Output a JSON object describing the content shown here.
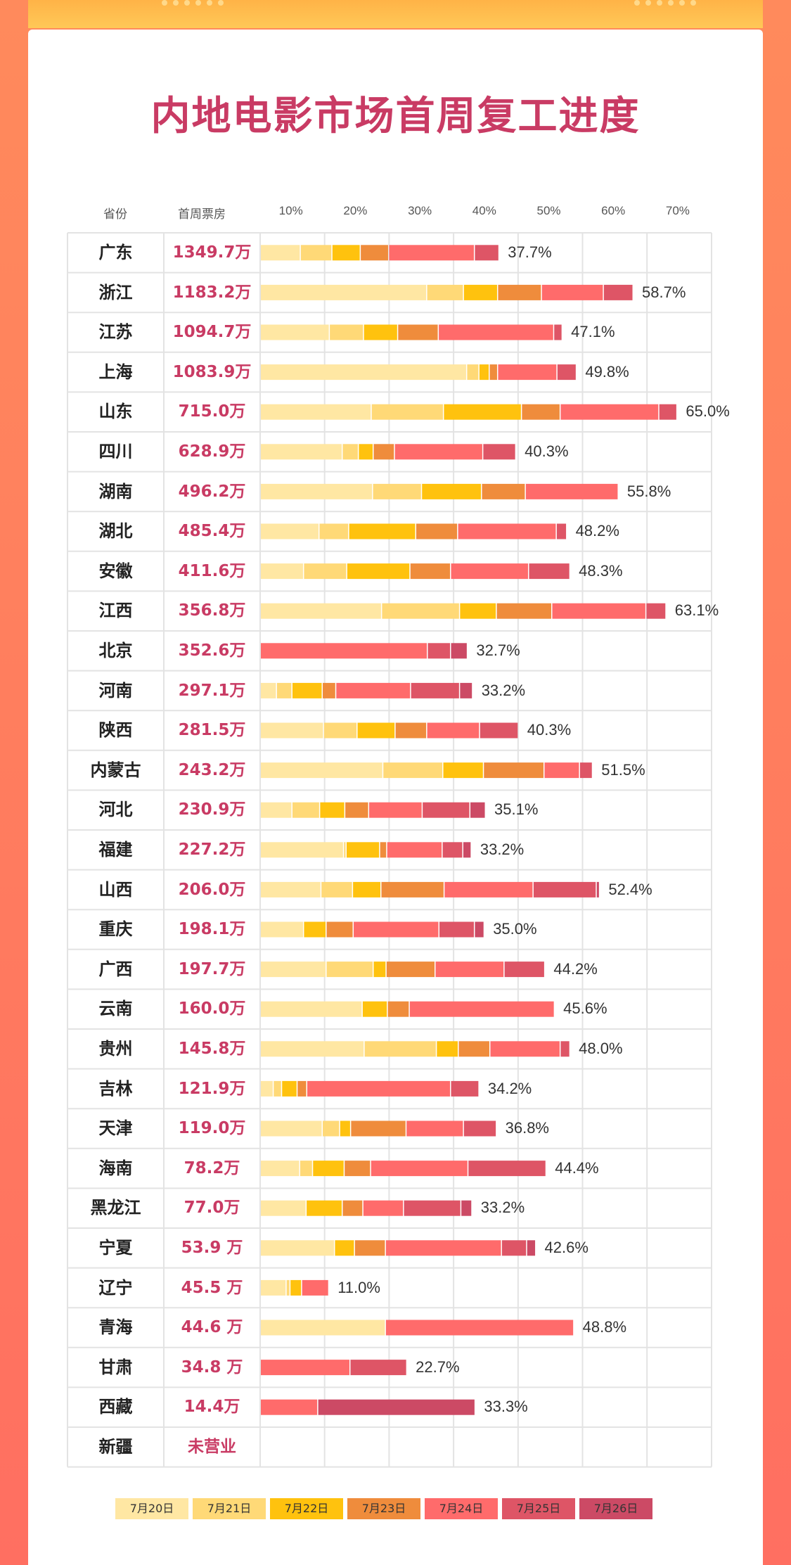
{
  "page": {
    "title": "内地电影市场首周复工进度"
  },
  "headers": {
    "province": "省份",
    "box_office": "首周票房"
  },
  "colors": {
    "d0": "#ffe7a3",
    "d1": "#ffd977",
    "d2": "#ffc20e",
    "d3": "#ef8c3c",
    "d4": "#ff6b6b",
    "d5": "#de5566",
    "d6": "#cc4a65",
    "title": "#c93b64",
    "value": "#c93b64",
    "grid": "#e3e3e3"
  },
  "chart_data": {
    "type": "bar",
    "orientation": "horizontal-stacked",
    "xticks": [
      "10%",
      "20%",
      "30%",
      "40%",
      "50%",
      "60%",
      "70%"
    ],
    "xlim": [
      0,
      70
    ],
    "legend_placement": "bottom",
    "series_names": [
      "7月20日",
      "7月21日",
      "7月22日",
      "7月23日",
      "7月24日",
      "7月25日",
      "7月26日"
    ],
    "rows": [
      {
        "province": "广东",
        "box_office": "1349.7万",
        "segments": [
          6.2,
          4.9,
          4.4,
          4.4,
          13.3,
          3.8,
          0
        ],
        "pct": "37.7%"
      },
      {
        "province": "浙江",
        "box_office": "1183.2万",
        "segments": [
          25.8,
          5.7,
          5.3,
          6.8,
          9.6,
          4.6,
          0
        ],
        "pct": "58.7%"
      },
      {
        "province": "江苏",
        "box_office": "1094.7万",
        "segments": [
          10.7,
          5.3,
          5.3,
          6.3,
          17.9,
          1.3,
          0
        ],
        "pct": "47.1%"
      },
      {
        "province": "上海",
        "box_office": "1083.9万",
        "segments": [
          32.0,
          1.9,
          1.6,
          1.3,
          9.2,
          3.0,
          0
        ],
        "pct": "49.8%"
      },
      {
        "province": "山东",
        "box_office": "715.0万",
        "segments": [
          17.2,
          11.2,
          12.1,
          6.0,
          15.3,
          2.8,
          0
        ],
        "pct": "65.0%"
      },
      {
        "province": "四川",
        "box_office": "628.9万",
        "segments": [
          12.7,
          2.5,
          2.3,
          3.3,
          13.7,
          5.1,
          0
        ],
        "pct": "40.3%"
      },
      {
        "province": "湖南",
        "box_office": "496.2万",
        "segments": [
          17.4,
          7.6,
          9.3,
          6.8,
          14.4,
          0,
          0
        ],
        "pct": "55.8%"
      },
      {
        "province": "湖北",
        "box_office": "485.4万",
        "segments": [
          9.1,
          4.6,
          10.4,
          6.5,
          15.3,
          1.6,
          0
        ],
        "pct": "48.2%"
      },
      {
        "province": "安徽",
        "box_office": "411.6万",
        "segments": [
          6.7,
          6.7,
          9.8,
          6.3,
          12.1,
          6.4,
          0
        ],
        "pct": "48.3%"
      },
      {
        "province": "江西",
        "box_office": "356.8万",
        "segments": [
          18.8,
          12.1,
          5.7,
          8.6,
          14.6,
          3.1,
          0
        ],
        "pct": "63.1%"
      },
      {
        "province": "北京",
        "box_office": "352.6万",
        "segments": [
          0,
          0,
          0,
          0,
          25.9,
          3.6,
          2.6
        ],
        "pct": "32.7%"
      },
      {
        "province": "河南",
        "box_office": "297.1万",
        "segments": [
          2.5,
          2.4,
          4.7,
          2.1,
          11.6,
          7.6,
          2.0
        ],
        "pct": "33.2%"
      },
      {
        "province": "陕西",
        "box_office": "281.5万",
        "segments": [
          9.8,
          5.2,
          5.9,
          4.9,
          8.2,
          6.0,
          0
        ],
        "pct": "40.3%"
      },
      {
        "province": "内蒙古",
        "box_office": "243.2万",
        "segments": [
          19.0,
          9.3,
          6.3,
          9.4,
          5.5,
          2.0,
          0
        ],
        "pct": "51.5%"
      },
      {
        "province": "河北",
        "box_office": "230.9万",
        "segments": [
          4.9,
          4.3,
          3.9,
          3.7,
          8.3,
          7.4,
          2.4
        ],
        "pct": "35.1%"
      },
      {
        "province": "福建",
        "box_office": "227.2万",
        "segments": [
          12.9,
          0.4,
          5.2,
          1.1,
          8.6,
          3.2,
          1.3
        ],
        "pct": "33.2%"
      },
      {
        "province": "山西",
        "box_office": "206.0万",
        "segments": [
          9.4,
          4.9,
          4.4,
          9.8,
          13.8,
          9.8,
          0.5
        ],
        "pct": "52.4%"
      },
      {
        "province": "重庆",
        "box_office": "198.1万",
        "segments": [
          6.7,
          0,
          3.5,
          4.2,
          13.3,
          5.5,
          1.5
        ],
        "pct": "35.0%"
      },
      {
        "province": "广西",
        "box_office": "197.7万",
        "segments": [
          10.2,
          7.3,
          2.0,
          7.6,
          10.7,
          6.3,
          0
        ],
        "pct": "44.2%"
      },
      {
        "province": "云南",
        "box_office": "160.0万",
        "segments": [
          15.8,
          0,
          3.9,
          3.4,
          22.5,
          0,
          0
        ],
        "pct": "45.6%"
      },
      {
        "province": "贵州",
        "box_office": "145.8万",
        "segments": [
          16.1,
          11.2,
          3.4,
          4.9,
          10.9,
          1.5,
          0
        ],
        "pct": "48.0%"
      },
      {
        "province": "吉林",
        "box_office": "121.9万",
        "segments": [
          2.0,
          1.3,
          2.4,
          1.5,
          22.3,
          4.4,
          0
        ],
        "pct": "34.2%"
      },
      {
        "province": "天津",
        "box_office": "119.0万",
        "segments": [
          9.6,
          2.7,
          1.7,
          8.6,
          8.9,
          5.1,
          0
        ],
        "pct": "36.8%"
      },
      {
        "province": "海南",
        "box_office": "78.2万",
        "segments": [
          6.1,
          2.0,
          4.9,
          4.1,
          15.1,
          12.1,
          0
        ],
        "pct": "44.4%"
      },
      {
        "province": "黑龙江",
        "box_office": "77.0万",
        "segments": [
          7.1,
          0,
          5.6,
          3.2,
          6.3,
          8.9,
          1.7
        ],
        "pct": "33.2%"
      },
      {
        "province": "宁夏",
        "box_office": "53.9 万",
        "segments": [
          11.5,
          0,
          3.1,
          4.8,
          18.0,
          3.9,
          1.4
        ],
        "pct": "42.6%"
      },
      {
        "province": "辽宁",
        "box_office": "45.5 万",
        "segments": [
          4.0,
          0.6,
          1.8,
          0,
          4.2,
          0,
          0
        ],
        "pct": "11.0%"
      },
      {
        "province": "青海",
        "box_office": "44.6 万",
        "segments": [
          19.4,
          0,
          0,
          0,
          29.2,
          0,
          0
        ],
        "pct": "48.8%"
      },
      {
        "province": "甘肃",
        "box_office": "34.8 万",
        "segments": [
          0,
          0,
          0,
          0,
          13.9,
          8.8,
          0
        ],
        "pct": "22.7%"
      },
      {
        "province": "西藏",
        "box_office": "14.4万",
        "segments": [
          0,
          0,
          0,
          0,
          8.9,
          0,
          24.4
        ],
        "pct": "33.3%"
      },
      {
        "province": "新疆",
        "box_office": "未营业",
        "segments": [
          0,
          0,
          0,
          0,
          0,
          0,
          0
        ],
        "pct": ""
      }
    ]
  }
}
